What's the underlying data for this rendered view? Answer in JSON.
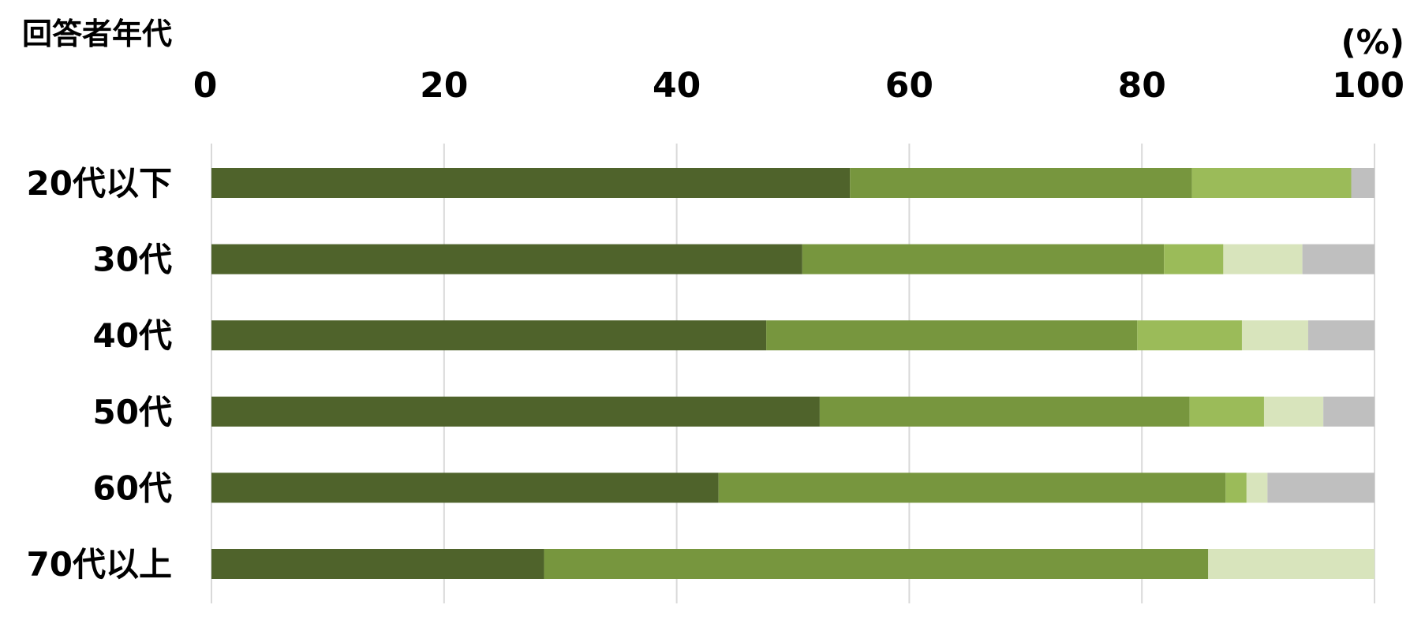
{
  "chart_data": {
    "type": "bar",
    "orientation": "horizontal",
    "stacked": true,
    "ylabel": "回答者年代",
    "unit": "(%)",
    "xlim": [
      0,
      100
    ],
    "x_ticks": [
      "0",
      "20",
      "40",
      "60",
      "80",
      "100"
    ],
    "grid": true,
    "categories": [
      "20代以下",
      "30代",
      "40代",
      "50代",
      "60代",
      "70代以上"
    ],
    "series": [
      {
        "color": "#4f632b",
        "values": [
          54.9,
          50.8,
          47.7,
          52.3,
          43.6,
          28.6
        ]
      },
      {
        "color": "#77963e",
        "values": [
          29.4,
          31.1,
          31.9,
          31.8,
          43.6,
          57.1
        ]
      },
      {
        "color": "#9bbb59",
        "values": [
          13.7,
          5.1,
          9.0,
          6.4,
          1.8,
          0
        ]
      },
      {
        "color": "#d8e4bc",
        "values": [
          0,
          6.8,
          5.7,
          5.1,
          1.8,
          14.3
        ]
      },
      {
        "color": "#bfbfbf",
        "values": [
          2.0,
          6.2,
          5.7,
          4.4,
          9.2,
          0
        ]
      }
    ]
  }
}
